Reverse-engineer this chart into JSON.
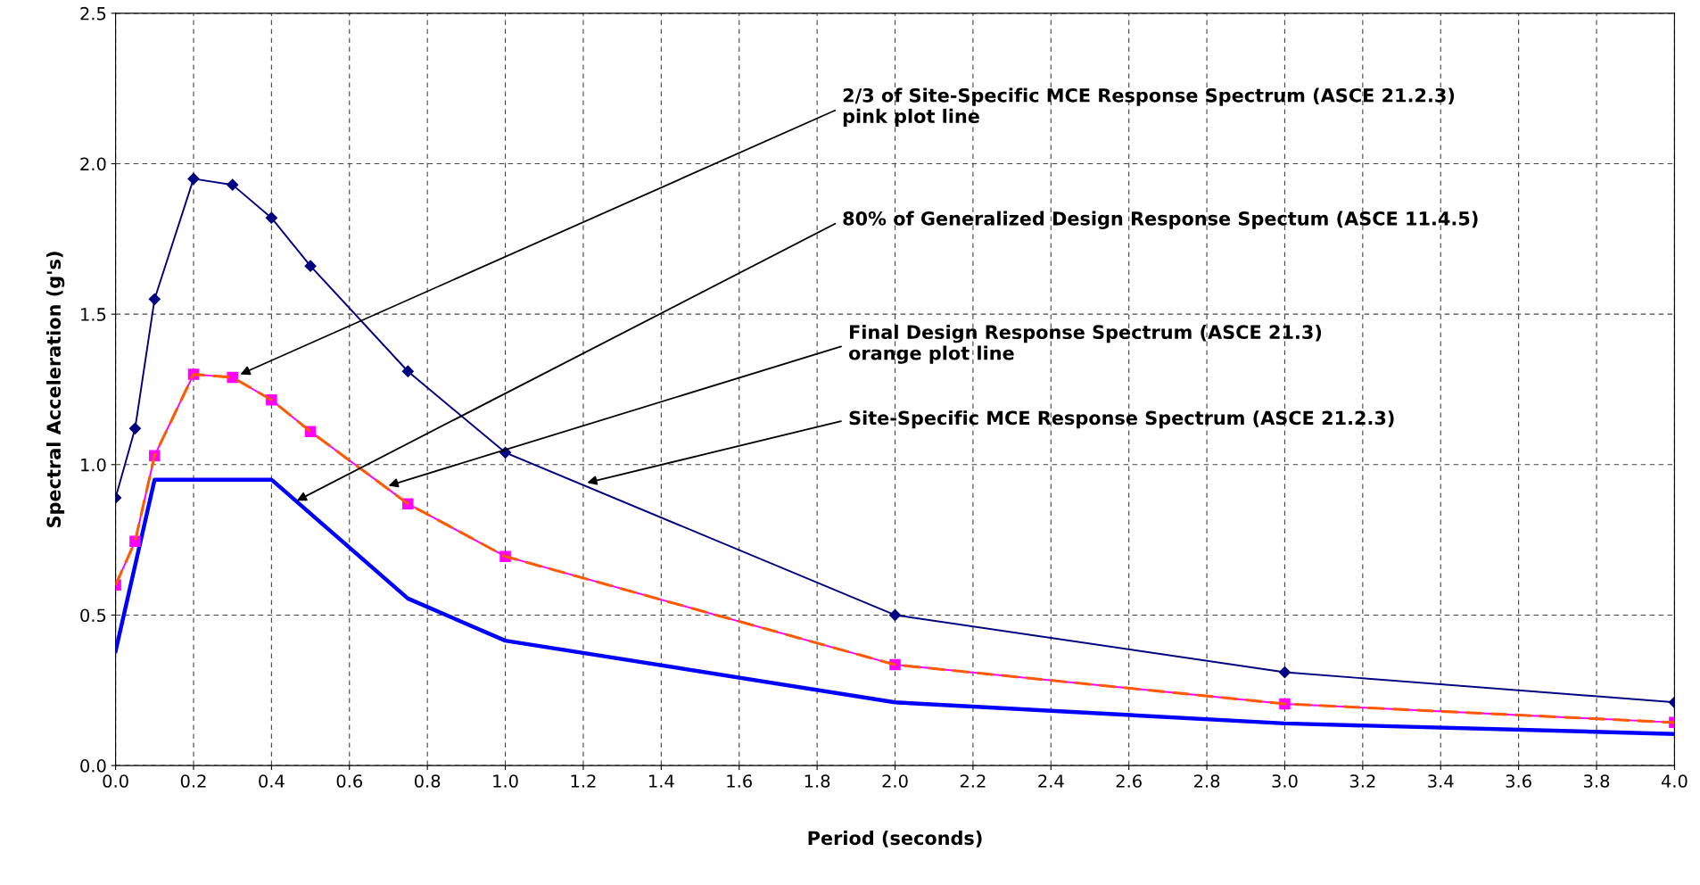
{
  "chart_data": {
    "type": "line",
    "xlabel": "Period (seconds)",
    "ylabel": "Spectral Acceleration (g's)",
    "xlim": [
      0,
      4
    ],
    "ylim": [
      0,
      2.5
    ],
    "xticks": [
      {
        "value": 0,
        "label": "0.0"
      },
      {
        "value": 0.2,
        "label": "0.2"
      },
      {
        "value": 0.4,
        "label": "0.4"
      },
      {
        "value": 0.6,
        "label": "0.6"
      },
      {
        "value": 0.8,
        "label": "0.8"
      },
      {
        "value": 1,
        "label": "1.0"
      },
      {
        "value": 1.2,
        "label": "1.2"
      },
      {
        "value": 1.4,
        "label": "1.4"
      },
      {
        "value": 1.6,
        "label": "1.6"
      },
      {
        "value": 1.8,
        "label": "1.8"
      },
      {
        "value": 2,
        "label": "2.0"
      },
      {
        "value": 2.2,
        "label": "2.2"
      },
      {
        "value": 2.4,
        "label": "2.4"
      },
      {
        "value": 2.6,
        "label": "2.6"
      },
      {
        "value": 2.8,
        "label": "2.8"
      },
      {
        "value": 3,
        "label": "3.0"
      },
      {
        "value": 3.2,
        "label": "3.2"
      },
      {
        "value": 3.4,
        "label": "3.4"
      },
      {
        "value": 3.6,
        "label": "3.6"
      },
      {
        "value": 3.8,
        "label": "3.8"
      },
      {
        "value": 4,
        "label": "4.0"
      }
    ],
    "yticks": [
      {
        "value": 0,
        "label": "0.0"
      },
      {
        "value": 0.5,
        "label": "0.5"
      },
      {
        "value": 1,
        "label": "1.0"
      },
      {
        "value": 1.5,
        "label": "1.5"
      },
      {
        "value": 2,
        "label": "2.0"
      },
      {
        "value": 2.5,
        "label": "2.5"
      }
    ],
    "grid": true,
    "series": [
      {
        "color": "#000080",
        "marker": "diamond",
        "line_style": "solid",
        "x": [
          0,
          0.05,
          0.1,
          0.2,
          0.3,
          0.4,
          0.5,
          0.75,
          1,
          2,
          3,
          4
        ],
        "values": [
          0.89,
          1.12,
          1.55,
          1.95,
          1.93,
          1.82,
          1.66,
          1.31,
          1.04,
          0.5,
          0.31,
          0.21
        ]
      },
      {
        "color": "#ff5a00",
        "marker": "none",
        "line_style": "dashed",
        "x": [
          0,
          0.05,
          0.1,
          0.2,
          0.3,
          0.4,
          0.5,
          0.75,
          1,
          2,
          3,
          4
        ],
        "values": [
          0.6,
          0.745,
          1.03,
          1.3,
          1.29,
          1.215,
          1.11,
          0.87,
          0.695,
          0.335,
          0.205,
          0.143
        ]
      },
      {
        "color": "#ff00ff",
        "marker": "square",
        "line_style": "solid",
        "x": [
          0,
          0.05,
          0.1,
          0.2,
          0.3,
          0.4,
          0.5,
          0.75,
          1,
          2,
          3,
          4
        ],
        "values": [
          0.6,
          0.745,
          1.03,
          1.3,
          1.29,
          1.215,
          1.11,
          0.87,
          0.695,
          0.335,
          0.205,
          0.143
        ]
      },
      {
        "color": "#0000ff",
        "marker": "none",
        "line_style": "solid",
        "x": [
          0,
          0.1,
          0.4,
          0.75,
          1,
          2,
          3,
          4
        ],
        "values": [
          0.38,
          0.95,
          0.95,
          0.555,
          0.415,
          0.21,
          0.14,
          0.105
        ]
      }
    ],
    "annotations": [
      {
        "text": "2/3 of Site-Specific MCE Response Spectrum (ASCE 21.2.3)\npink plot line",
        "x": 0.32,
        "y": 1.3
      },
      {
        "text": "80% of Generalized Design Response Spectum (ASCE 11.4.5)",
        "x": 0.465,
        "y": 0.88
      },
      {
        "text": "Final Design Response Spectrum (ASCE 21.3)\norange plot line",
        "x": 0.7,
        "y": 0.93
      },
      {
        "text": "Site-Specific MCE Response Spectrum (ASCE 21.2.3)",
        "x": 1.21,
        "y": 0.94
      }
    ]
  }
}
